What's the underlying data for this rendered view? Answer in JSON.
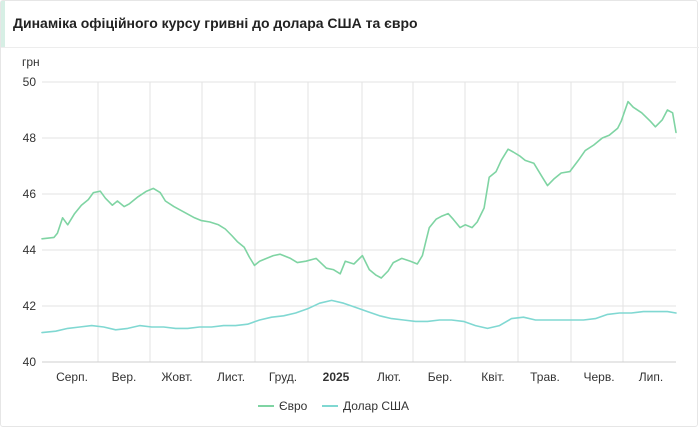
{
  "title": "Динаміка офіційного курсу гривні до долара США та євро",
  "chart_data": {
    "type": "line",
    "title": "Динаміка офіційного курсу гривні до долара США та євро",
    "ylabel": "грн",
    "xlabel": "",
    "ylim": [
      40,
      50
    ],
    "yticks": [
      40,
      42,
      44,
      46,
      48,
      50
    ],
    "x_tick_labels": [
      "Серп.",
      "Вер.",
      "Жовт.",
      "Лист.",
      "Груд.",
      "2025",
      "Лют.",
      "Бер.",
      "Квіт.",
      "Трав.",
      "Черв.",
      "Лип."
    ],
    "x_range": [
      "2024-07-24",
      "2025-07-29"
    ],
    "grid": true,
    "legend_position": "bottom",
    "series": [
      {
        "name": "Євро",
        "color": "#7fd4a3",
        "points": [
          [
            "2024-07-24",
            44.4
          ],
          [
            "2024-07-31",
            44.45
          ],
          [
            "2024-08-02",
            44.6
          ],
          [
            "2024-08-05",
            45.15
          ],
          [
            "2024-08-08",
            44.9
          ],
          [
            "2024-08-12",
            45.3
          ],
          [
            "2024-08-16",
            45.6
          ],
          [
            "2024-08-20",
            45.8
          ],
          [
            "2024-08-23",
            46.05
          ],
          [
            "2024-08-27",
            46.1
          ],
          [
            "2024-08-30",
            45.85
          ],
          [
            "2024-09-03",
            45.6
          ],
          [
            "2024-09-06",
            45.75
          ],
          [
            "2024-09-10",
            45.55
          ],
          [
            "2024-09-13",
            45.65
          ],
          [
            "2024-09-18",
            45.9
          ],
          [
            "2024-09-23",
            46.1
          ],
          [
            "2024-09-27",
            46.2
          ],
          [
            "2024-10-01",
            46.05
          ],
          [
            "2024-10-04",
            45.75
          ],
          [
            "2024-10-09",
            45.55
          ],
          [
            "2024-10-15",
            45.35
          ],
          [
            "2024-10-21",
            45.15
          ],
          [
            "2024-10-25",
            45.05
          ],
          [
            "2024-10-30",
            45.0
          ],
          [
            "2024-11-04",
            44.9
          ],
          [
            "2024-11-08",
            44.75
          ],
          [
            "2024-11-12",
            44.5
          ],
          [
            "2024-11-15",
            44.3
          ],
          [
            "2024-11-19",
            44.1
          ],
          [
            "2024-11-22",
            43.75
          ],
          [
            "2024-11-25",
            43.45
          ],
          [
            "2024-11-28",
            43.6
          ],
          [
            "2024-12-02",
            43.7
          ],
          [
            "2024-12-06",
            43.8
          ],
          [
            "2024-12-10",
            43.85
          ],
          [
            "2024-12-16",
            43.7
          ],
          [
            "2024-12-20",
            43.55
          ],
          [
            "2024-12-25",
            43.6
          ],
          [
            "2024-12-31",
            43.7
          ],
          [
            "2025-01-06",
            43.35
          ],
          [
            "2025-01-10",
            43.3
          ],
          [
            "2025-01-14",
            43.15
          ],
          [
            "2025-01-17",
            43.6
          ],
          [
            "2025-01-22",
            43.5
          ],
          [
            "2025-01-27",
            43.8
          ],
          [
            "2025-01-31",
            43.3
          ],
          [
            "2025-02-04",
            43.1
          ],
          [
            "2025-02-07",
            43.0
          ],
          [
            "2025-02-11",
            43.25
          ],
          [
            "2025-02-14",
            43.55
          ],
          [
            "2025-02-19",
            43.7
          ],
          [
            "2025-02-24",
            43.6
          ],
          [
            "2025-02-28",
            43.5
          ],
          [
            "2025-03-03",
            43.8
          ],
          [
            "2025-03-05",
            44.3
          ],
          [
            "2025-03-07",
            44.8
          ],
          [
            "2025-03-11",
            45.1
          ],
          [
            "2025-03-14",
            45.2
          ],
          [
            "2025-03-18",
            45.3
          ],
          [
            "2025-03-21",
            45.1
          ],
          [
            "2025-03-25",
            44.8
          ],
          [
            "2025-03-28",
            44.9
          ],
          [
            "2025-04-01",
            44.8
          ],
          [
            "2025-04-04",
            45.0
          ],
          [
            "2025-04-08",
            45.5
          ],
          [
            "2025-04-11",
            46.6
          ],
          [
            "2025-04-15",
            46.8
          ],
          [
            "2025-04-18",
            47.2
          ],
          [
            "2025-04-22",
            47.6
          ],
          [
            "2025-04-25",
            47.5
          ],
          [
            "2025-04-29",
            47.35
          ],
          [
            "2025-05-02",
            47.2
          ],
          [
            "2025-05-07",
            47.1
          ],
          [
            "2025-05-12",
            46.6
          ],
          [
            "2025-05-15",
            46.3
          ],
          [
            "2025-05-19",
            46.55
          ],
          [
            "2025-05-23",
            46.75
          ],
          [
            "2025-05-28",
            46.8
          ],
          [
            "2025-06-02",
            47.2
          ],
          [
            "2025-06-06",
            47.55
          ],
          [
            "2025-06-11",
            47.75
          ],
          [
            "2025-06-16",
            48.0
          ],
          [
            "2025-06-20",
            48.1
          ],
          [
            "2025-06-25",
            48.35
          ],
          [
            "2025-06-27",
            48.6
          ],
          [
            "2025-07-01",
            49.3
          ],
          [
            "2025-07-04",
            49.1
          ],
          [
            "2025-07-09",
            48.9
          ],
          [
            "2025-07-14",
            48.6
          ],
          [
            "2025-07-17",
            48.4
          ],
          [
            "2025-07-21",
            48.65
          ],
          [
            "2025-07-24",
            49.0
          ],
          [
            "2025-07-27",
            48.9
          ],
          [
            "2025-07-29",
            48.2
          ]
        ]
      },
      {
        "name": "Долар США",
        "color": "#80d8d2",
        "points": [
          [
            "2024-07-24",
            41.05
          ],
          [
            "2024-08-01",
            41.1
          ],
          [
            "2024-08-08",
            41.2
          ],
          [
            "2024-08-15",
            41.25
          ],
          [
            "2024-08-22",
            41.3
          ],
          [
            "2024-08-29",
            41.25
          ],
          [
            "2024-09-05",
            41.15
          ],
          [
            "2024-09-12",
            41.2
          ],
          [
            "2024-09-19",
            41.3
          ],
          [
            "2024-09-26",
            41.25
          ],
          [
            "2024-10-03",
            41.25
          ],
          [
            "2024-10-10",
            41.2
          ],
          [
            "2024-10-17",
            41.2
          ],
          [
            "2024-10-24",
            41.25
          ],
          [
            "2024-10-31",
            41.25
          ],
          [
            "2024-11-07",
            41.3
          ],
          [
            "2024-11-14",
            41.3
          ],
          [
            "2024-11-21",
            41.35
          ],
          [
            "2024-11-28",
            41.5
          ],
          [
            "2024-12-05",
            41.6
          ],
          [
            "2024-12-12",
            41.65
          ],
          [
            "2024-12-19",
            41.75
          ],
          [
            "2024-12-26",
            41.9
          ],
          [
            "2025-01-02",
            42.1
          ],
          [
            "2025-01-09",
            42.2
          ],
          [
            "2025-01-16",
            42.1
          ],
          [
            "2025-01-23",
            41.95
          ],
          [
            "2025-01-30",
            41.8
          ],
          [
            "2025-02-06",
            41.65
          ],
          [
            "2025-02-13",
            41.55
          ],
          [
            "2025-02-20",
            41.5
          ],
          [
            "2025-02-27",
            41.45
          ],
          [
            "2025-03-06",
            41.45
          ],
          [
            "2025-03-13",
            41.5
          ],
          [
            "2025-03-20",
            41.5
          ],
          [
            "2025-03-27",
            41.45
          ],
          [
            "2025-04-03",
            41.3
          ],
          [
            "2025-04-10",
            41.2
          ],
          [
            "2025-04-17",
            41.3
          ],
          [
            "2025-04-24",
            41.55
          ],
          [
            "2025-05-01",
            41.6
          ],
          [
            "2025-05-08",
            41.5
          ],
          [
            "2025-05-15",
            41.5
          ],
          [
            "2025-05-22",
            41.5
          ],
          [
            "2025-05-29",
            41.5
          ],
          [
            "2025-06-05",
            41.5
          ],
          [
            "2025-06-12",
            41.55
          ],
          [
            "2025-06-19",
            41.7
          ],
          [
            "2025-06-26",
            41.75
          ],
          [
            "2025-07-03",
            41.75
          ],
          [
            "2025-07-10",
            41.8
          ],
          [
            "2025-07-17",
            41.8
          ],
          [
            "2025-07-24",
            41.8
          ],
          [
            "2025-07-29",
            41.75
          ]
        ]
      }
    ]
  }
}
